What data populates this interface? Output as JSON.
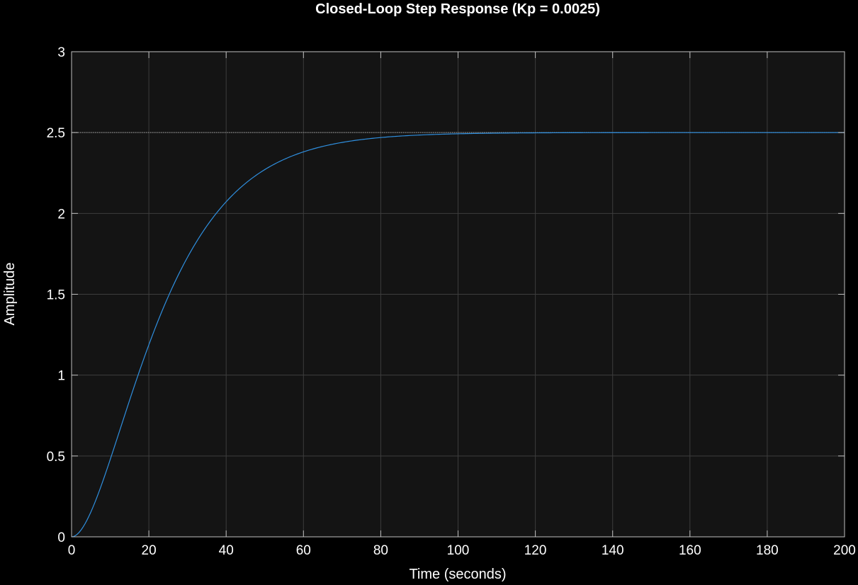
{
  "chart_data": {
    "type": "line",
    "title": "Closed-Loop Step Response (Kp = 0.0025)",
    "xlabel": "Time (seconds)",
    "ylabel": "Amplitude",
    "xlim": [
      0,
      200
    ],
    "ylim": [
      0,
      3
    ],
    "xticks": [
      "0",
      "20",
      "40",
      "60",
      "80",
      "100",
      "120",
      "140",
      "160",
      "180",
      "200"
    ],
    "yticks": [
      "0",
      "0.5",
      "1",
      "1.5",
      "2",
      "2.5",
      "3"
    ],
    "grid": true,
    "reference_line": {
      "y": 2.5,
      "style": "dotted"
    },
    "series": [
      {
        "x": [
          0,
          2,
          4,
          6,
          8,
          10,
          12,
          14,
          16,
          18,
          20,
          22,
          24,
          26,
          28,
          30,
          32,
          34,
          36,
          38,
          40,
          42,
          44,
          46,
          48,
          50,
          52,
          54,
          56,
          58,
          60,
          62,
          64,
          66,
          68,
          70,
          72,
          74,
          76,
          78,
          80,
          82,
          84,
          86,
          88,
          90,
          92,
          94,
          96,
          98,
          100,
          102,
          104,
          106,
          108,
          110,
          112,
          114,
          116,
          118,
          120,
          140,
          160,
          180,
          200
        ],
        "y": [
          0,
          0.0243,
          0.0876,
          0.1786,
          0.2894,
          0.4133,
          0.5452,
          0.681,
          0.8175,
          0.9521,
          1.0827,
          1.2079,
          1.3265,
          1.4378,
          1.5413,
          1.6367,
          1.7241,
          1.8036,
          1.8755,
          1.9401,
          1.998,
          2.0495,
          2.0952,
          2.1356,
          2.1712,
          2.2024,
          2.2297,
          2.2535,
          2.2742,
          2.2922,
          2.3078,
          2.3214,
          2.3331,
          2.3432,
          2.3518,
          2.3593,
          2.3657,
          2.3712,
          2.3759,
          2.38,
          2.3834,
          2.3864,
          2.3889,
          2.3911,
          2.3929,
          2.3945,
          2.3958,
          2.397,
          2.3979,
          2.3988,
          2.3995,
          2.4001,
          2.4006,
          2.401,
          2.4014,
          2.4017,
          2.4019,
          2.4022,
          2.4024,
          2.4025,
          2.4026,
          2.5,
          2.5,
          2.5,
          2.5
        ]
      }
    ]
  },
  "colors": {
    "background": "#000000",
    "plot_area": "#141414",
    "grid": "#3d3d3d",
    "axis": "#bfbfbf",
    "line": "#2f8fdf",
    "reference": "#9a9a9a"
  }
}
